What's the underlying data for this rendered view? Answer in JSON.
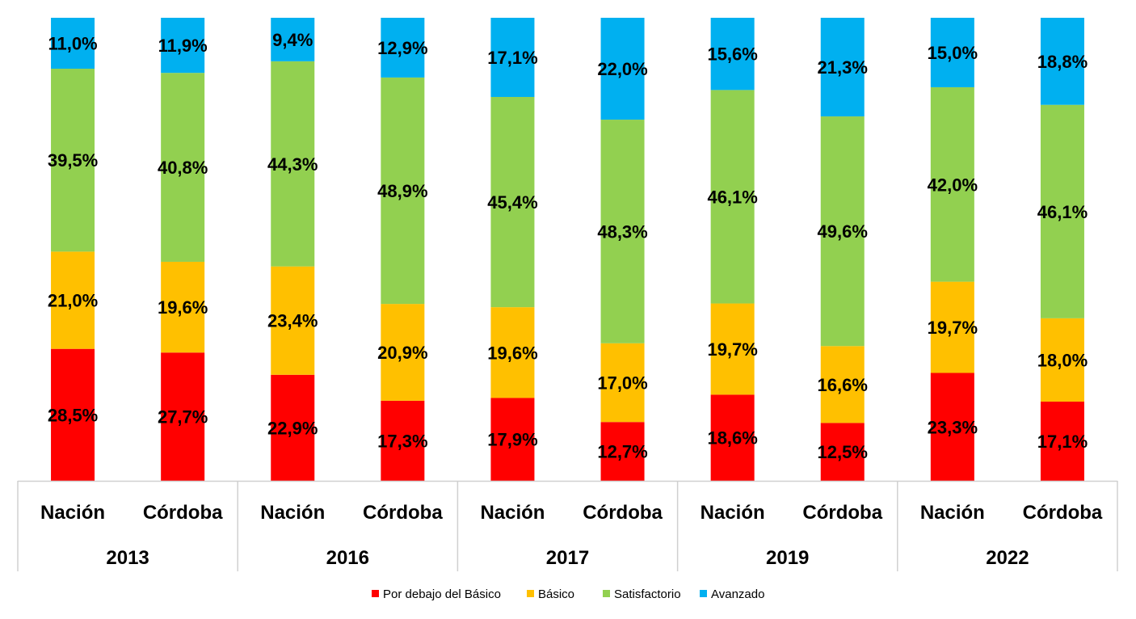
{
  "chart_data": {
    "type": "bar",
    "stacked": true,
    "normalized": true,
    "groups": [
      {
        "label": "2013",
        "categories": [
          "Nación",
          "Córdoba"
        ]
      },
      {
        "label": "2016",
        "categories": [
          "Nación",
          "Córdoba"
        ]
      },
      {
        "label": "2017",
        "categories": [
          "Nación",
          "Córdoba"
        ]
      },
      {
        "label": "2019",
        "categories": [
          "Nación",
          "Córdoba"
        ]
      },
      {
        "label": "2022",
        "categories": [
          "Nación",
          "Córdoba"
        ]
      }
    ],
    "series": [
      {
        "name": "Por debajo del Básico",
        "color": "#FF0000",
        "values": [
          28.5,
          27.7,
          22.9,
          17.3,
          17.9,
          12.7,
          18.6,
          12.5,
          23.3,
          17.1
        ],
        "labels": [
          "28,5%",
          "27,7%",
          "22,9%",
          "17,3%",
          "17,9%",
          "12,7%",
          "18,6%",
          "12,5%",
          "23,3%",
          "17,1%"
        ]
      },
      {
        "name": "Básico",
        "color": "#FFC000",
        "values": [
          21.0,
          19.6,
          23.4,
          20.9,
          19.6,
          17.0,
          19.7,
          16.6,
          19.7,
          18.0
        ],
        "labels": [
          "21,0%",
          "19,6%",
          "23,4%",
          "20,9%",
          "19,6%",
          "17,0%",
          "19,7%",
          "16,6%",
          "19,7%",
          "18,0%"
        ]
      },
      {
        "name": "Satisfactorio",
        "color": "#92D050",
        "values": [
          39.5,
          40.8,
          44.3,
          48.9,
          45.4,
          48.3,
          46.1,
          49.6,
          42.0,
          46.1
        ],
        "labels": [
          "39,5%",
          "40,8%",
          "44,3%",
          "48,9%",
          "45,4%",
          "48,3%",
          "46,1%",
          "49,6%",
          "42,0%",
          "46,1%"
        ]
      },
      {
        "name": "Avanzado",
        "color": "#00B0F0",
        "values": [
          11.0,
          11.9,
          9.4,
          12.9,
          17.1,
          22.0,
          15.6,
          21.3,
          15.0,
          18.8
        ],
        "labels": [
          "11,0%",
          "11,9%",
          "9,4%",
          "12,9%",
          "17,1%",
          "22,0%",
          "15,6%",
          "21,3%",
          "15,0%",
          "18,8%"
        ]
      }
    ],
    "ylim": [
      0,
      100
    ],
    "grid": false,
    "legend": "bottom",
    "title": "",
    "xlabel": "",
    "ylabel": ""
  }
}
